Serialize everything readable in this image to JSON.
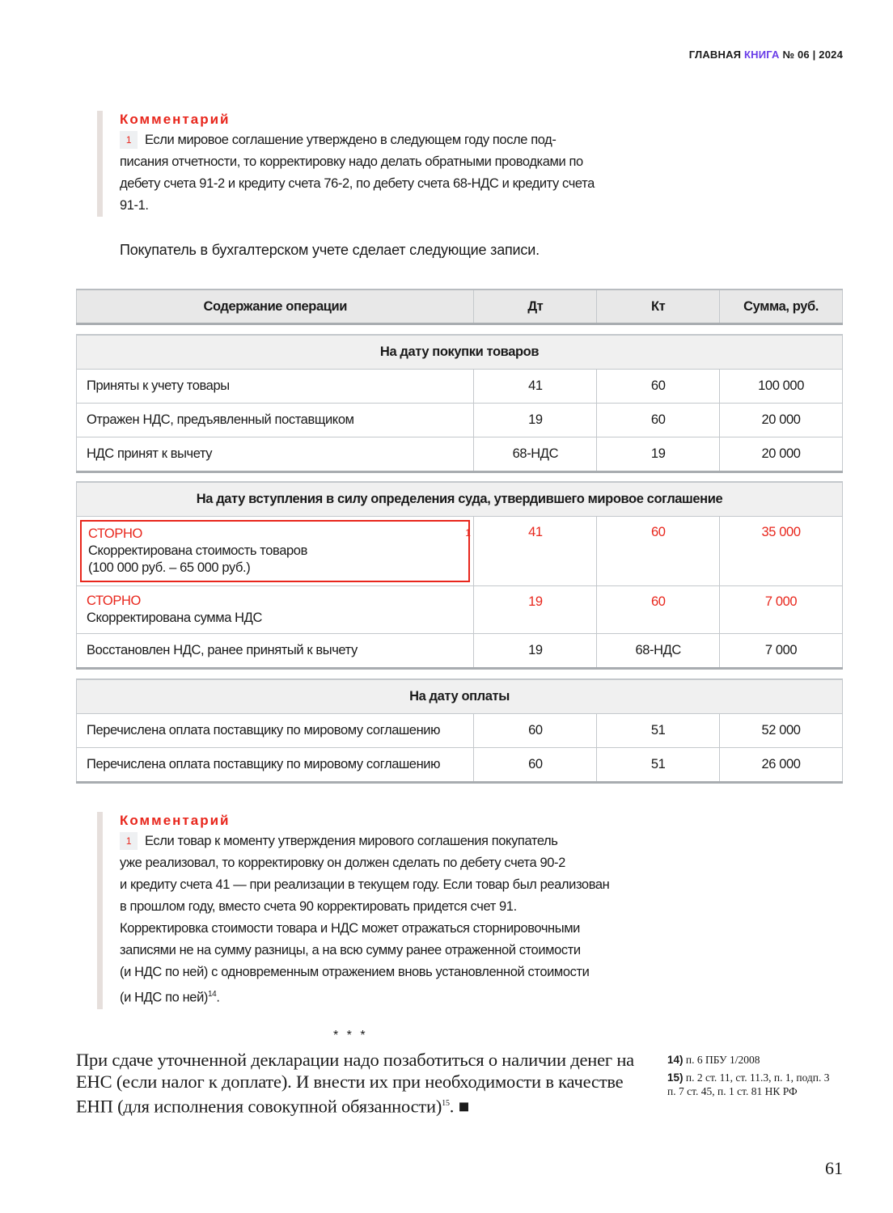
{
  "masthead": {
    "part1": "ГЛАВНАЯ",
    "part2": "КНИГА",
    "part3": "№ 06 | 2024"
  },
  "comment1": {
    "title": "Комментарий",
    "badge": "1",
    "text": "Если мировое соглашение утверждено в следующем году после под-писания отчетности, то корректировку надо делать обратными проводками по дебету счета 91-2 и кредиту счета 76-2, по дебету счета 68-НДС и кредиту счета 91-1."
  },
  "intro": "Покупатель в бухгалтерском учете сделает следующие записи.",
  "table": {
    "headers": [
      "Содержание операции",
      "Дт",
      "Кт",
      "Сумма, руб."
    ],
    "sections": [
      {
        "title": "На дату покупки товаров",
        "rows": [
          {
            "op": "Приняты к учету товары",
            "dt": "41",
            "kt": "60",
            "sum": "100 000"
          },
          {
            "op": "Отражен НДС, предъявленный поставщиком",
            "dt": "19",
            "kt": "60",
            "sum": "20 000"
          },
          {
            "op": "НДС принят к вычету",
            "dt": "68-НДС",
            "kt": "19",
            "sum": "20 000"
          }
        ]
      },
      {
        "title": "На дату вступления в силу определения суда, утвердившего мировое соглашение",
        "rows": [
          {
            "storno": "СТОРНО",
            "op": "Скорректирована стоимость товаров",
            "op2": "(100 000 руб. – 65 000 руб.)",
            "dt": "41",
            "kt": "60",
            "sum": "35 000",
            "red": true,
            "boxed": true,
            "mark": "1"
          },
          {
            "storno": "СТОРНО",
            "op": "Скорректирована сумма НДС",
            "dt": "19",
            "kt": "60",
            "sum": "7 000",
            "red": true
          },
          {
            "op": "Восстановлен НДС, ранее принятый к вычету",
            "dt": "19",
            "kt": "68-НДС",
            "sum": "7 000"
          }
        ]
      },
      {
        "title": "На дату оплаты",
        "rows": [
          {
            "op": "Перечислена оплата поставщику по мировому соглашению",
            "dt": "60",
            "kt": "51",
            "sum": "52 000"
          },
          {
            "op": "Перечислена оплата поставщику по мировому соглашению",
            "dt": "60",
            "kt": "51",
            "sum": "26 000"
          }
        ]
      }
    ]
  },
  "comment2": {
    "title": "Комментарий",
    "badge": "1",
    "lines": [
      "Если товар к моменту утверждения мирового соглашения покупатель",
      "уже реализовал, то корректировку он должен сделать по дебету счета 90-2",
      "и кредиту счета 41 — при реализации в текущем году. Если товар был реализован",
      "в прошлом году, вместо счета 90 корректировать придется счет 91.",
      "Корректировка стоимости товара и НДС может отражаться сторнировочными",
      "записями не на сумму разницы, а на всю сумму ранее отраженной стоимости",
      "(и НДС по ней) с одновременным отражением вновь установленной стоимости",
      "(и НДС по ней)"
    ],
    "footnote_ref": "14"
  },
  "stars": "* * *",
  "final": {
    "text": "При сдаче уточненной декларации надо позаботиться о наличии денег на ЕНС (если налог к доплате). И внести их при необходимости в качестве ЕНП (для исполнения совокупной обязанности)",
    "footnote_ref": "15",
    "end_mark": "■"
  },
  "footnotes": [
    {
      "num": "14)",
      "text": "п. 6 ПБУ 1/2008"
    },
    {
      "num": "15)",
      "text": "п. 2 ст. 11, ст. 11.3, п. 1, подп. 3 п. 7 ст. 45, п. 1 ст. 81 НК РФ"
    }
  ],
  "page_number": "61",
  "colors": {
    "accent_red": "#e8261c",
    "brand_purple": "#6a3de8"
  }
}
